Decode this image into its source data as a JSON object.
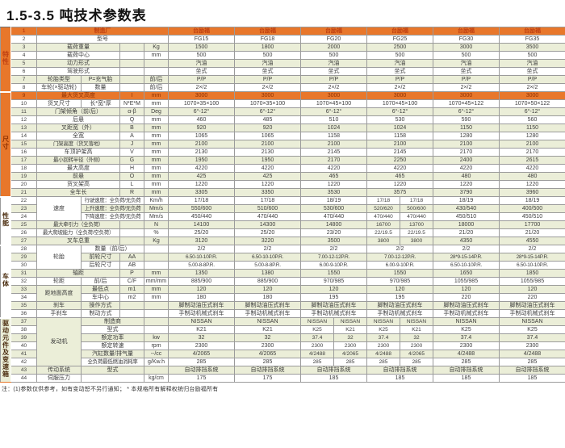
{
  "title": "1.5-3.5 吨技术参数表",
  "footnote": "注：(1)参数仅供参考，如有变动恕不另行通知；  * 本规格所有解释权统归台励福所有",
  "colors": {
    "orange": "#e8772b",
    "green_stripe": "#ebeed8",
    "orange_row_text": "#8f3000",
    "orange_header_text": "#bf4012",
    "grid": "#9b9b9b"
  },
  "band_groups": [
    {
      "label": "特性",
      "from": 1,
      "to": 8
    },
    {
      "label": "尺寸",
      "from": 9,
      "to": 21
    },
    {
      "label": "性能",
      "from": 22,
      "to": 27
    },
    {
      "label": "车体",
      "from": 28,
      "to": 36
    },
    {
      "label": "驱动元件及变速箱",
      "from": 37,
      "to": 44
    }
  ],
  "models": [
    "FG15",
    "FG18",
    "FG20",
    "FG25",
    "FG30",
    "FG35"
  ],
  "rows": [
    {
      "no": 1,
      "cls": "orange",
      "labels": [
        {
          "t": "制造厂",
          "s": 4
        }
      ],
      "values": [
        "台励福",
        "台励福",
        "台励福",
        "台励福",
        "台励福",
        "台励福"
      ]
    },
    {
      "no": 2,
      "labels": [
        {
          "t": "型号",
          "s": 4
        }
      ],
      "values": [
        "FG15",
        "FG18",
        "FG20",
        "FG25",
        "FG30",
        "FG35"
      ]
    },
    {
      "no": 3,
      "labels": [
        {
          "t": "载荷重量",
          "s": 2
        },
        {
          "t": "",
          "s": 1
        },
        {
          "t": "Kg",
          "s": 1
        }
      ],
      "values": [
        "1500",
        "1800",
        "2000",
        "2500",
        "3000",
        "3500"
      ]
    },
    {
      "no": 4,
      "labels": [
        {
          "t": "载荷中心",
          "s": 2
        },
        {
          "t": "",
          "s": 1
        },
        {
          "t": "mm",
          "s": 1
        }
      ],
      "values": [
        "500",
        "500",
        "500",
        "500",
        "500",
        "500"
      ]
    },
    {
      "no": 5,
      "labels": [
        {
          "t": "动力形式",
          "s": 2
        },
        {
          "t": "",
          "s": 1
        },
        {
          "t": "",
          "s": 1
        }
      ],
      "values": [
        "汽油",
        "汽油",
        "汽油",
        "汽油",
        "汽油",
        "汽油"
      ]
    },
    {
      "no": 6,
      "labels": [
        {
          "t": "驾驶形式",
          "s": 2
        },
        {
          "t": "",
          "s": 1
        },
        {
          "t": "",
          "s": 1
        }
      ],
      "values": [
        "坐式",
        "坐式",
        "坐式",
        "坐式",
        "坐式",
        "坐式"
      ]
    },
    {
      "no": 7,
      "labels": [
        {
          "t": "轮胎类型",
          "s": 1
        },
        {
          "t": "P=充气胎",
          "s": 1
        },
        {
          "t": "",
          "s": 1
        },
        {
          "t": "前/后",
          "s": 1
        }
      ],
      "values": [
        "P/P",
        "P/P",
        "P/P",
        "P/P",
        "P/P",
        "P/P"
      ]
    },
    {
      "no": 8,
      "labels": [
        {
          "t": "车轮(×驱动轮)",
          "s": 1
        },
        {
          "t": "数量",
          "s": 1
        },
        {
          "t": "",
          "s": 1
        },
        {
          "t": "前/后",
          "s": 1
        }
      ],
      "values": [
        "2×/2",
        "2×/2",
        "2×/2",
        "2×/2",
        "2×/2",
        "2×/2"
      ]
    },
    {
      "no": 9,
      "cls": "orange2",
      "labels": [
        {
          "t": "最大货叉高度",
          "s": 2
        },
        {
          "t": "I",
          "s": 1
        },
        {
          "t": "mm",
          "s": 1
        }
      ],
      "values": [
        "3000",
        "3000",
        "3000",
        "3000",
        "3000",
        "3000"
      ]
    },
    {
      "no": 10,
      "labels": [
        {
          "t": "货叉尺寸",
          "s": 1
        },
        {
          "t": "长*宽*厚",
          "s": 1
        },
        {
          "t": "N*E*M",
          "s": 1
        },
        {
          "t": "mm",
          "s": 1
        }
      ],
      "values": [
        "1070×35×100",
        "1070×35×100",
        "1070×45×100",
        "1070×45×100",
        "1070×45×122",
        "1070×50×122"
      ]
    },
    {
      "no": 11,
      "labels": [
        {
          "t": "门架倾角（前/后）",
          "s": 2
        },
        {
          "t": "α-β",
          "s": 1
        },
        {
          "t": "Deg",
          "s": 1
        }
      ],
      "values": [
        "6°-12°",
        "6°-12°",
        "6°-12°",
        "6°-12°",
        "6°-12°",
        "6°-12°"
      ]
    },
    {
      "no": 12,
      "labels": [
        {
          "t": "后悬",
          "s": 2
        },
        {
          "t": "Q",
          "s": 1
        },
        {
          "t": "mm",
          "s": 1
        }
      ],
      "values": [
        "460",
        "485",
        "510",
        "530",
        "590",
        "560"
      ]
    },
    {
      "no": 13,
      "labels": [
        {
          "t": "叉距宽（外）",
          "s": 2
        },
        {
          "t": "B",
          "s": 1
        },
        {
          "t": "mm",
          "s": 1
        }
      ],
      "values": [
        "920",
        "920",
        "1024",
        "1024",
        "1150",
        "1150"
      ]
    },
    {
      "no": 14,
      "labels": [
        {
          "t": "全宽",
          "s": 2
        },
        {
          "t": "A",
          "s": 1
        },
        {
          "t": "mm",
          "s": 1
        }
      ],
      "values": [
        "1065",
        "1065",
        "1158",
        "1158",
        "1280",
        "1280"
      ]
    },
    {
      "no": 15,
      "labels": [
        {
          "t": "门架高度（货叉落地）",
          "s": 2
        },
        {
          "t": "J",
          "s": 1
        },
        {
          "t": "mm",
          "s": 1
        }
      ],
      "values": [
        "2100",
        "2100",
        "2100",
        "2100",
        "2100",
        "2100"
      ]
    },
    {
      "no": 16,
      "labels": [
        {
          "t": "车顶护架高",
          "s": 2
        },
        {
          "t": "V",
          "s": 1
        },
        {
          "t": "mm",
          "s": 1
        }
      ],
      "values": [
        "2130",
        "2130",
        "2145",
        "2145",
        "2170",
        "2170"
      ]
    },
    {
      "no": 17,
      "labels": [
        {
          "t": "最小回转半径（外侧）",
          "s": 2
        },
        {
          "t": "G",
          "s": 1
        },
        {
          "t": "mm",
          "s": 1
        }
      ],
      "values": [
        "1950",
        "1950",
        "2170",
        "2250",
        "2400",
        "2615"
      ]
    },
    {
      "no": 18,
      "labels": [
        {
          "t": "最大高度",
          "s": 2
        },
        {
          "t": "H",
          "s": 1
        },
        {
          "t": "mm",
          "s": 1
        }
      ],
      "values": [
        "4220",
        "4220",
        "4220",
        "4220",
        "4220",
        "4220"
      ]
    },
    {
      "no": 19,
      "labels": [
        {
          "t": "前悬",
          "s": 2
        },
        {
          "t": "O",
          "s": 1
        },
        {
          "t": "mm",
          "s": 1
        }
      ],
      "values": [
        "425",
        "425",
        "465",
        "465",
        "480",
        "480"
      ]
    },
    {
      "no": 20,
      "labels": [
        {
          "t": "货叉架高",
          "s": 2
        },
        {
          "t": "L",
          "s": 1
        },
        {
          "t": "mm",
          "s": 1
        }
      ],
      "values": [
        "1220",
        "1220",
        "1220",
        "1220",
        "1220",
        "1220"
      ]
    },
    {
      "no": 21,
      "labels": [
        {
          "t": "全车长",
          "s": 2
        },
        {
          "t": "R",
          "s": 1
        },
        {
          "t": "mm",
          "s": 1
        }
      ],
      "values": [
        "3305",
        "3350",
        "3530",
        "3575",
        "3790",
        "3960"
      ]
    },
    {
      "no": 22,
      "labels": [
        {
          "t": "速度",
          "s": 1,
          "r": 3
        },
        {
          "t": "行驶速度：全负荷/无负荷",
          "s": 2
        },
        {
          "t": "Km/h",
          "s": 1
        }
      ],
      "values": [
        "17/18",
        "17/18",
        "18/19",
        [
          "17/18",
          "17/18"
        ],
        "18/19",
        "18/19"
      ]
    },
    {
      "no": 23,
      "labels": [
        {
          "t": "上升速度：全负荷/无负荷",
          "s": 2
        },
        {
          "t": "Mm/s",
          "s": 1
        }
      ],
      "values": [
        "550/600",
        "510/600",
        "530/600",
        [
          "520/620",
          "500/600"
        ],
        "430/540",
        "400/500"
      ]
    },
    {
      "no": 24,
      "labels": [
        {
          "t": "下降速度：全负荷/无负荷",
          "s": 2
        },
        {
          "t": "Mm/s",
          "s": 1
        }
      ],
      "values": [
        "450/440",
        "470/440",
        "470/440",
        [
          "470/440",
          "470/440"
        ],
        "450/510",
        "450/510"
      ]
    },
    {
      "no": 25,
      "labels": [
        {
          "t": "最大牵引力（全负荷）",
          "s": 2
        },
        {
          "t": "",
          "s": 1
        },
        {
          "t": "N",
          "s": 1
        }
      ],
      "values": [
        "14100",
        "14300",
        "14800",
        [
          "16700",
          "13700"
        ],
        "18000",
        "17700"
      ]
    },
    {
      "no": 26,
      "labels": [
        {
          "t": "最大爬坡能力（全负荷/空负荷）",
          "s": 2
        },
        {
          "t": "",
          "s": 1
        },
        {
          "t": "%",
          "s": 1
        }
      ],
      "values": [
        "25/20",
        "25/20",
        "23/20",
        [
          "22/19.5",
          "22/19.5"
        ],
        "21/20",
        "21/20"
      ]
    },
    {
      "no": 27,
      "labels": [
        {
          "t": "叉车总重",
          "s": 2
        },
        {
          "t": "",
          "s": 1
        },
        {
          "t": "Kg",
          "s": 1
        }
      ],
      "values": [
        "3120",
        "3220",
        "3500",
        [
          "3800",
          "3800"
        ],
        "4350",
        "4550"
      ]
    },
    {
      "no": 28,
      "labels": [
        {
          "t": "轮胎",
          "s": 1,
          "r": 3
        },
        {
          "t": "数量（前/后）",
          "s": 2
        },
        {
          "t": "",
          "s": 1
        }
      ],
      "values": [
        "2/2",
        "2/2",
        "2/2",
        "2/2",
        "2/2",
        "2/2"
      ]
    },
    {
      "no": 29,
      "labels": [
        {
          "t": "前轮尺寸",
          "s": 1
        },
        {
          "t": "AA",
          "s": 1
        },
        {
          "t": "",
          "s": 1
        }
      ],
      "values": [
        "6.50-10-10P.R.",
        "6.50-10-10P.R.",
        "7.00-12-12P.R.",
        "7.00-12-12P.R.",
        "28*9-15-14P.R.",
        "28*9-15-14P.R."
      ]
    },
    {
      "no": 30,
      "labels": [
        {
          "t": "后轮尺寸",
          "s": 1
        },
        {
          "t": "AB",
          "s": 1
        },
        {
          "t": "",
          "s": 1
        }
      ],
      "values": [
        "5.00-8-8P.R.",
        "5.00-8-8P.R.",
        "6.00-9-10P.R.",
        "6.00-9-10P.R.",
        "6.50-10-10P.R.",
        "6.50-10-10P.R."
      ]
    },
    {
      "no": 31,
      "labels": [
        {
          "t": "轴距",
          "s": 2
        },
        {
          "t": "P",
          "s": 1
        },
        {
          "t": "mm",
          "s": 1
        }
      ],
      "values": [
        "1350",
        "1380",
        "1550",
        "1550",
        "1650",
        "1850"
      ]
    },
    {
      "no": 32,
      "labels": [
        {
          "t": "轮距",
          "s": 1
        },
        {
          "t": "前/后",
          "s": 1
        },
        {
          "t": "C/F",
          "s": 1
        },
        {
          "t": "mm/mm",
          "s": 1
        }
      ],
      "values": [
        "885/900",
        "885/900",
        "970/985",
        "970/985",
        "1055/985",
        "1055/985"
      ]
    },
    {
      "no": 33,
      "labels": [
        {
          "t": "距地面高度",
          "s": 1,
          "r": 2
        },
        {
          "t": "最低点",
          "s": 1
        },
        {
          "t": "m1",
          "s": 1
        },
        {
          "t": "mm",
          "s": 1
        }
      ],
      "values": [
        "120",
        "120",
        "120",
        "120",
        "120",
        "120"
      ]
    },
    {
      "no": 34,
      "labels": [
        {
          "t": "车中心",
          "s": 1
        },
        {
          "t": "m2",
          "s": 1
        },
        {
          "t": "mm",
          "s": 1
        }
      ],
      "values": [
        "180",
        "180",
        "195",
        "195",
        "220",
        "220"
      ]
    },
    {
      "no": 35,
      "labels": [
        {
          "t": "刹车",
          "s": 1
        },
        {
          "t": "操作方式",
          "s": 1
        },
        {
          "t": "",
          "s": 1
        },
        {
          "t": "",
          "s": 1
        }
      ],
      "values": [
        "脚制动油压式刹车",
        "脚制动油压式刹车",
        "脚制动油压式刹车",
        "脚制动油压式刹车",
        "脚制动油压式刹车",
        "脚制动油压式刹车"
      ]
    },
    {
      "no": 36,
      "labels": [
        {
          "t": "手刹车",
          "s": 1
        },
        {
          "t": "制动方式",
          "s": 1
        },
        {
          "t": "",
          "s": 1
        },
        {
          "t": "",
          "s": 1
        }
      ],
      "values": [
        "手制动机械式刹车",
        "手制动机械式刹车",
        "手制动机械式刹车",
        "手制动机械式刹车",
        "手制动机械式刹车",
        "手制动机械式刹车"
      ]
    },
    {
      "no": 37,
      "labels": [
        {
          "t": "发动机",
          "s": 1,
          "r": 6
        },
        {
          "t": "制造商",
          "s": 2
        },
        {
          "t": "",
          "s": 1
        }
      ],
      "values": [
        "NISSAN",
        "NISSAN",
        [
          "NISSAN",
          "NISSAN"
        ],
        [
          "NISSAN",
          "NISSAN"
        ],
        "NISSAN",
        "NISSAN"
      ]
    },
    {
      "no": 38,
      "labels": [
        {
          "t": "型式",
          "s": 2
        },
        {
          "t": "",
          "s": 1
        }
      ],
      "values": [
        "K21",
        "K21",
        [
          "K25",
          "K21"
        ],
        [
          "K25",
          "K21"
        ],
        "K25",
        "K25"
      ]
    },
    {
      "no": 39,
      "labels": [
        {
          "t": "额定功率",
          "s": 2
        },
        {
          "t": "kw",
          "s": 1
        }
      ],
      "values": [
        "32",
        "32",
        [
          "37.4",
          "32"
        ],
        [
          "37.4",
          "32"
        ],
        "37.4",
        "37.4"
      ]
    },
    {
      "no": 40,
      "labels": [
        {
          "t": "额定转速",
          "s": 2
        },
        {
          "t": "rpm",
          "s": 1
        }
      ],
      "values": [
        "2300",
        "2300",
        [
          "2300",
          "2300"
        ],
        [
          "2300",
          "2300"
        ],
        "2300",
        "2300"
      ]
    },
    {
      "no": 41,
      "labels": [
        {
          "t": "汽缸数量/排气量",
          "s": 2
        },
        {
          "t": "--/cc",
          "s": 1
        }
      ],
      "values": [
        "4/2065",
        "4/2065",
        [
          "4/2488",
          "4/2065"
        ],
        [
          "4/2488",
          "4/2065"
        ],
        "4/2488",
        "4/2488"
      ]
    },
    {
      "no": 42,
      "labels": [
        {
          "t": "全负荷最低燃油消耗率",
          "s": 2
        },
        {
          "t": "g/Kw.h",
          "s": 1
        }
      ],
      "values": [
        "285",
        "285",
        [
          "285",
          "285"
        ],
        [
          "285",
          "285"
        ],
        "285",
        "285"
      ]
    },
    {
      "no": 43,
      "labels": [
        {
          "t": "传动系统",
          "s": 1
        },
        {
          "t": "型式",
          "s": 2
        },
        {
          "t": "",
          "s": 1
        }
      ],
      "values": [
        "自动排挡系统",
        "自动排挡系统",
        "自动排挡系统",
        "自动排挡系统",
        "自动排挡系统",
        "自动排挡系统"
      ]
    },
    {
      "no": 44,
      "labels": [
        {
          "t": "伺服压力",
          "s": 1
        },
        {
          "t": "",
          "s": 2
        },
        {
          "t": "kg/cm",
          "s": 1
        }
      ],
      "values": [
        "175",
        "175",
        "185",
        "185",
        "185",
        "185"
      ]
    }
  ]
}
